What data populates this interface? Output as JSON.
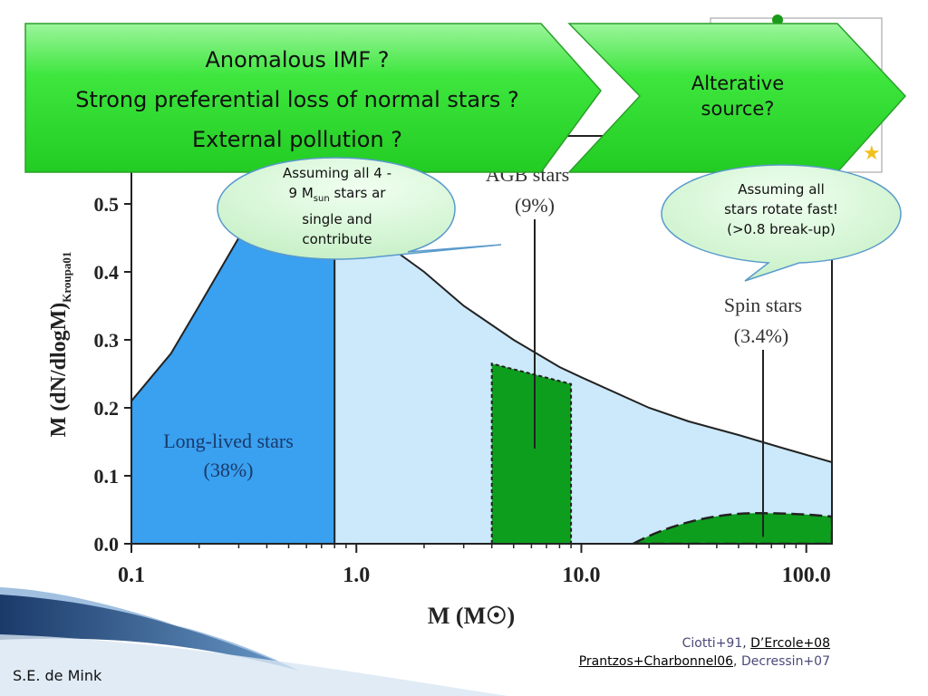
{
  "chart_data": {
    "type": "area",
    "xlabel": "M (M☉)",
    "ylabel": "M (dN/dlogM)",
    "ylabel_sub": "Kroupa01",
    "x_scale": "log",
    "xlim": [
      0.1,
      130
    ],
    "ylim": [
      0.0,
      0.6
    ],
    "x_ticks": [
      "0.1",
      "1.0",
      "10.0",
      "100.0"
    ],
    "y_ticks": [
      "0.0",
      "0.1",
      "0.2",
      "0.3",
      "0.4",
      "0.5"
    ],
    "curve": {
      "x": [
        0.1,
        0.15,
        0.2,
        0.3,
        0.4,
        0.5,
        0.6,
        0.7,
        0.8,
        1.0,
        1.5,
        2,
        3,
        5,
        8,
        10,
        20,
        30,
        50,
        80,
        130
      ],
      "y": [
        0.21,
        0.28,
        0.35,
        0.45,
        0.52,
        0.54,
        0.535,
        0.52,
        0.505,
        0.48,
        0.43,
        0.4,
        0.35,
        0.3,
        0.26,
        0.245,
        0.2,
        0.18,
        0.16,
        0.14,
        0.12
      ]
    },
    "regions": [
      {
        "name": "Long-lived stars",
        "percent": "(38%)",
        "x_range": [
          0.1,
          0.8
        ],
        "color": "#3aa0f0"
      },
      {
        "name": "AGB stars",
        "percent": "(9%)",
        "x_range": [
          4,
          9
        ],
        "y_top": [
          0.265,
          0.235
        ],
        "color": "#0e9e1e"
      },
      {
        "name": "Spin stars",
        "percent": "(3.4%)",
        "x_range": [
          17,
          130
        ],
        "color": "#0e9e1e"
      }
    ]
  },
  "arrows": {
    "main_lines": [
      "Anomalous IMF ?",
      "Strong preferential loss of normal stars ?",
      "External pollution ?"
    ],
    "alt_lines": [
      "Alterative",
      "source?"
    ]
  },
  "bubbles": {
    "left_line1": "Assuming all 4 -",
    "left_line2_pre": "9 M",
    "left_line2_sub": "sun",
    "left_line2_post": " stars ar",
    "left_line3": "single and",
    "left_line4": "contribute",
    "right_lines": [
      "Assuming all",
      "stars rotate fast!",
      "(>0.8 break-up)"
    ]
  },
  "citation": {
    "line1_a": "Ciotti+91",
    "line1_sep": ", ",
    "line1_b": "D’Ercole+08",
    "line2_a": "Prantzos+Charbonnel06",
    "line2_sep": ", ",
    "line2_b": "Decressin+07"
  },
  "author": "S.E. de Mink",
  "colors": {
    "long_lived": "#3aa0f0",
    "light_fill": "#cce8fb",
    "green_region": "#0e9e1e",
    "arrow_green": "#3ee63e",
    "bubble_fill": "#d8f5d8"
  }
}
